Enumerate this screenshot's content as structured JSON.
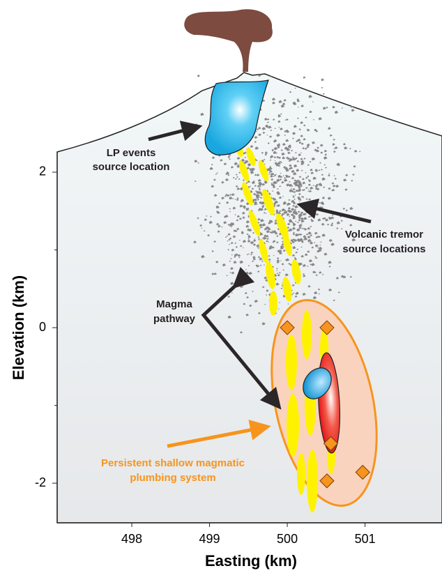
{
  "axes": {
    "x_label": "Easting (km)",
    "y_label": "Elevation (km)",
    "xlim": [
      497.04,
      501.99
    ],
    "ylim": [
      -2.51,
      2.26
    ],
    "xticks": [
      498,
      499,
      500,
      501
    ],
    "yticks": [
      -2,
      0,
      2
    ],
    "yminor": [
      -1,
      1
    ]
  },
  "markers": {
    "x": [
      500,
      500.51,
      500.56,
      500.97,
      500.51
    ],
    "y": [
      0,
      0,
      -1.49,
      -1.86,
      -1.97
    ]
  },
  "annotations": [
    {
      "lines": [
        "LP events",
        "source location"
      ]
    },
    {
      "lines": [
        "Volcanic tremor",
        "source locations"
      ]
    },
    {
      "lines": [
        "Magma",
        "pathway"
      ]
    },
    {
      "lines": [
        "Persistent shallow magmatic",
        "plumbing system"
      ]
    }
  ]
}
